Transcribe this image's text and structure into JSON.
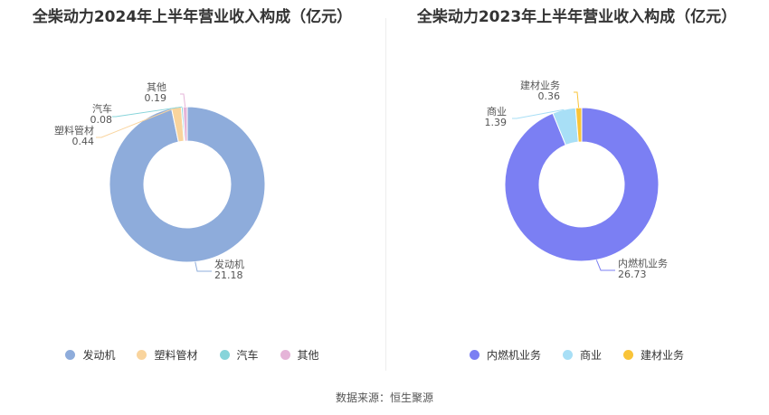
{
  "chart_data": [
    {
      "type": "pie",
      "title": "全柴动力2024年上半年营业收入构成（亿元）",
      "labels": [
        "发动机",
        "塑料管材",
        "汽车",
        "其他"
      ],
      "values": [
        21.18,
        0.44,
        0.08,
        0.19
      ],
      "value_labels": [
        "21.18",
        "0.44",
        "0.08",
        "0.19"
      ],
      "colors": [
        "#8eacdb",
        "#f9d49d",
        "#87d4da",
        "#e5b4d8"
      ],
      "legend_position": "bottom",
      "donut": true
    },
    {
      "type": "pie",
      "title": "全柴动力2023年上半年营业收入构成（亿元）",
      "labels": [
        "内燃机业务",
        "商业",
        "建材业务"
      ],
      "values": [
        26.73,
        1.39,
        0.36
      ],
      "value_labels": [
        "26.73",
        "1.39",
        "0.36"
      ],
      "colors": [
        "#7b7ff3",
        "#a8dff6",
        "#f9c439"
      ],
      "legend_position": "bottom",
      "donut": true
    }
  ],
  "source": "数据来源：恒生聚源"
}
